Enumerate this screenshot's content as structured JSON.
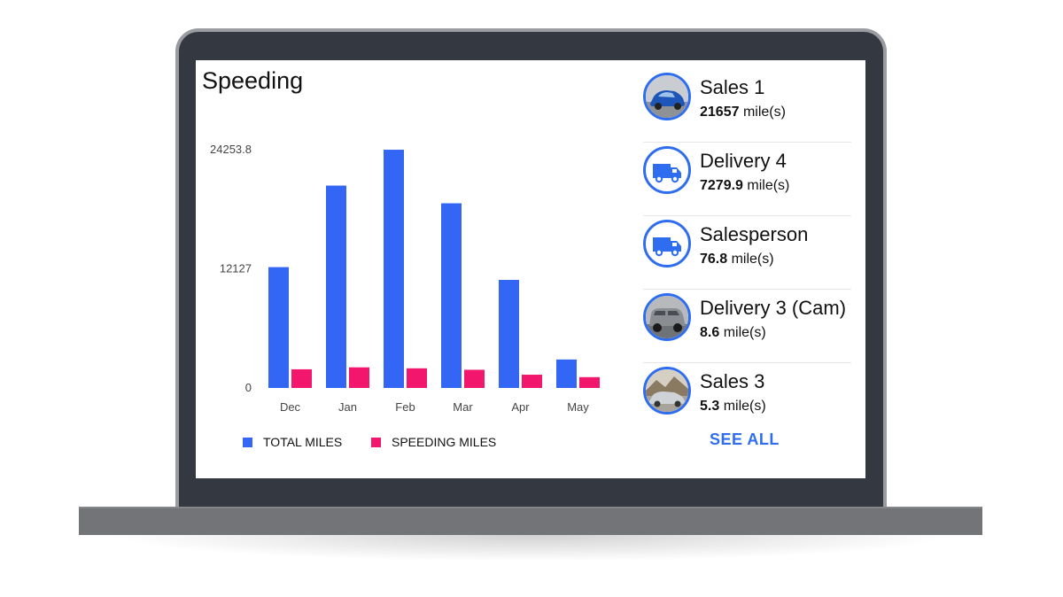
{
  "title": "Speeding",
  "colors": {
    "total": "#3366f5",
    "speeding": "#f2176d",
    "accent": "#2f6df0"
  },
  "chart_data": {
    "type": "bar",
    "title": "Speeding",
    "categories": [
      "Dec",
      "Jan",
      "Feb",
      "Mar",
      "Apr",
      "May"
    ],
    "series": [
      {
        "name": "TOTAL MILES",
        "values": [
          12300,
          20600,
          24250,
          18800,
          11000,
          2900
        ]
      },
      {
        "name": "SPEEDING MILES",
        "values": [
          1900,
          2100,
          2000,
          1850,
          1350,
          1100
        ]
      }
    ],
    "yticks": [
      "0",
      "12127",
      "24253.8"
    ],
    "ylim": [
      0,
      24253.8
    ],
    "legend": "bottom"
  },
  "vehicles": [
    {
      "name": "Sales 1",
      "miles": "21657",
      "unit": "mile(s)",
      "icon": "car-photo-blue-icon"
    },
    {
      "name": "Delivery 4",
      "miles": "7279.9",
      "unit": "mile(s)",
      "icon": "van-icon"
    },
    {
      "name": "Salesperson",
      "miles": "76.8",
      "unit": "mile(s)",
      "icon": "van-icon"
    },
    {
      "name": "Delivery 3 (Cam)",
      "miles": "8.6",
      "unit": "mile(s)",
      "icon": "suv-photo-icon"
    },
    {
      "name": "Sales 3",
      "miles": "5.3",
      "unit": "mile(s)",
      "icon": "car-photo-silver-icon"
    }
  ],
  "see_all_label": "SEE ALL"
}
